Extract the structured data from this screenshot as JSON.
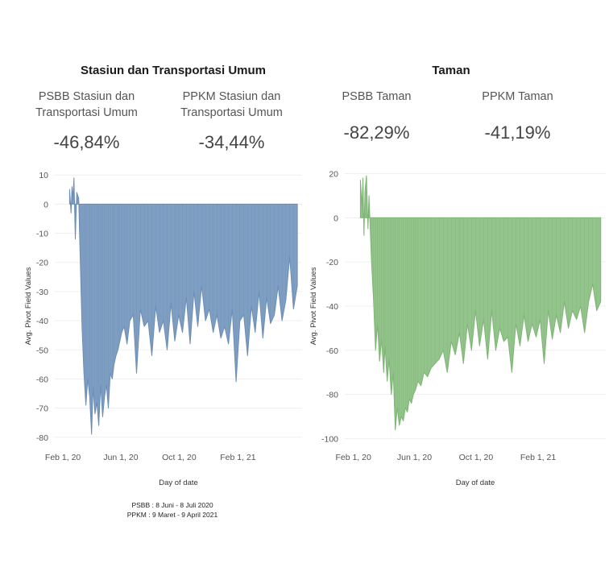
{
  "notes": {
    "psbb": "PSBB : 8 Juni - 8 Juli 2020",
    "ppkm": "PPKM : 9 Maret - 9 April 2021"
  },
  "chart_data": [
    {
      "type": "area",
      "title": "Stasiun dan Transportasi Umum",
      "kpis": [
        {
          "label": "PSBB Stasiun dan\nTransportasi Umum",
          "value": "-46,84%"
        },
        {
          "label": "PPKM Stasiun dan\nTransportasi Umum",
          "value": "-34,44%"
        }
      ],
      "color": "#7f9fc2",
      "stroke": "#6c8db5",
      "xlabel": "Day of date",
      "ylabel": "Avg. Pivot Field Values",
      "ylim": [
        -82,
        12
      ],
      "yticks": [
        10,
        0,
        -10,
        -20,
        -30,
        -40,
        -50,
        -60,
        -70,
        -80
      ],
      "xlim": [
        "2020-01-15",
        "2021-06-15"
      ],
      "xticks": [
        {
          "date": "2020-02-01",
          "label": "Feb 1, 20"
        },
        {
          "date": "2020-06-01",
          "label": "Jun 1, 20"
        },
        {
          "date": "2020-10-01",
          "label": "Oct 1, 20"
        },
        {
          "date": "2021-02-01",
          "label": "Feb 1, 21"
        }
      ],
      "x": [
        "2020-02-15",
        "2020-02-18",
        "2020-02-20",
        "2020-02-22",
        "2020-02-24",
        "2020-02-27",
        "2020-03-01",
        "2020-03-03",
        "2020-03-05",
        "2020-03-08",
        "2020-03-12",
        "2020-03-16",
        "2020-03-20",
        "2020-03-24",
        "2020-03-28",
        "2020-04-01",
        "2020-04-04",
        "2020-04-08",
        "2020-04-12",
        "2020-04-16",
        "2020-04-20",
        "2020-04-24",
        "2020-04-28",
        "2020-05-02",
        "2020-05-06",
        "2020-05-10",
        "2020-05-14",
        "2020-05-18",
        "2020-05-22",
        "2020-05-26",
        "2020-05-30",
        "2020-06-03",
        "2020-06-08",
        "2020-06-14",
        "2020-06-20",
        "2020-06-27",
        "2020-07-04",
        "2020-07-12",
        "2020-07-20",
        "2020-07-28",
        "2020-08-05",
        "2020-08-13",
        "2020-08-21",
        "2020-08-29",
        "2020-09-06",
        "2020-09-14",
        "2020-09-22",
        "2020-09-30",
        "2020-10-08",
        "2020-10-16",
        "2020-10-24",
        "2020-11-01",
        "2020-11-09",
        "2020-11-17",
        "2020-11-25",
        "2020-12-03",
        "2020-12-11",
        "2020-12-19",
        "2020-12-27",
        "2021-01-04",
        "2021-01-12",
        "2021-01-20",
        "2021-01-28",
        "2021-02-05",
        "2021-02-13",
        "2021-02-21",
        "2021-03-01",
        "2021-03-09",
        "2021-03-17",
        "2021-03-25",
        "2021-04-02",
        "2021-04-10",
        "2021-04-18",
        "2021-04-26",
        "2021-05-04",
        "2021-05-12",
        "2021-05-20",
        "2021-05-28",
        "2021-06-05"
      ],
      "values": [
        5,
        -3,
        6,
        2,
        9,
        -12,
        4,
        3,
        2,
        -18,
        -42,
        -58,
        -69,
        -60,
        -66,
        -79,
        -63,
        -72,
        -68,
        -76,
        -62,
        -73,
        -66,
        -62,
        -70,
        -58,
        -60,
        -55,
        -52,
        -50,
        -47,
        -44,
        -42,
        -48,
        -40,
        -38,
        -58,
        -36,
        -42,
        -40,
        -52,
        -35,
        -44,
        -40,
        -50,
        -34,
        -47,
        -38,
        -44,
        -32,
        -48,
        -30,
        -42,
        -28,
        -40,
        -36,
        -44,
        -38,
        -46,
        -42,
        -48,
        -36,
        -61,
        -40,
        -38,
        -52,
        -35,
        -44,
        -30,
        -46,
        -32,
        -41,
        -38,
        -28,
        -40,
        -33,
        -18,
        -36,
        -28
      ]
    },
    {
      "type": "area",
      "title": "Taman",
      "kpis": [
        {
          "label": "PSBB Taman",
          "value": "-82,29%"
        },
        {
          "label": "PPKM Taman",
          "value": "-41,19%"
        }
      ],
      "color": "#93c48b",
      "stroke": "#7db574",
      "xlabel": "Day of date",
      "ylabel": "Avg. Pivot Field Values",
      "ylim": [
        -102,
        22
      ],
      "yticks": [
        20,
        0,
        -20,
        -40,
        -60,
        -80,
        -100
      ],
      "xlim": [
        "2020-01-15",
        "2021-06-15"
      ],
      "xticks": [
        {
          "date": "2020-02-01",
          "label": "Feb 1, 20"
        },
        {
          "date": "2020-06-01",
          "label": "Jun 1, 20"
        },
        {
          "date": "2020-10-01",
          "label": "Oct 1, 20"
        },
        {
          "date": "2021-02-01",
          "label": "Feb 1, 21"
        }
      ],
      "x": [
        "2020-02-15",
        "2020-02-18",
        "2020-02-20",
        "2020-02-22",
        "2020-02-24",
        "2020-02-27",
        "2020-03-01",
        "2020-03-03",
        "2020-03-05",
        "2020-03-08",
        "2020-03-12",
        "2020-03-16",
        "2020-03-20",
        "2020-03-24",
        "2020-03-28",
        "2020-04-01",
        "2020-04-04",
        "2020-04-08",
        "2020-04-12",
        "2020-04-16",
        "2020-04-20",
        "2020-04-24",
        "2020-04-28",
        "2020-05-02",
        "2020-05-06",
        "2020-05-10",
        "2020-05-14",
        "2020-05-18",
        "2020-05-22",
        "2020-05-26",
        "2020-05-30",
        "2020-06-03",
        "2020-06-08",
        "2020-06-14",
        "2020-06-20",
        "2020-06-27",
        "2020-07-04",
        "2020-07-12",
        "2020-07-20",
        "2020-07-28",
        "2020-08-05",
        "2020-08-13",
        "2020-08-21",
        "2020-08-29",
        "2020-09-06",
        "2020-09-14",
        "2020-09-22",
        "2020-09-30",
        "2020-10-08",
        "2020-10-16",
        "2020-10-24",
        "2020-11-01",
        "2020-11-09",
        "2020-11-17",
        "2020-11-25",
        "2020-12-03",
        "2020-12-11",
        "2020-12-19",
        "2020-12-27",
        "2021-01-04",
        "2021-01-12",
        "2021-01-20",
        "2021-01-28",
        "2021-02-05",
        "2021-02-13",
        "2021-02-21",
        "2021-03-01",
        "2021-03-09",
        "2021-03-17",
        "2021-03-25",
        "2021-04-02",
        "2021-04-10",
        "2021-04-18",
        "2021-04-26",
        "2021-05-04",
        "2021-05-12",
        "2021-05-20",
        "2021-05-28",
        "2021-06-05"
      ],
      "values": [
        17,
        5,
        18,
        -8,
        12,
        19,
        -5,
        10,
        -2,
        -20,
        -37,
        -60,
        -48,
        -65,
        -55,
        -70,
        -58,
        -74,
        -64,
        -80,
        -70,
        -96,
        -86,
        -94,
        -90,
        -92,
        -86,
        -88,
        -82,
        -84,
        -80,
        -78,
        -74,
        -76,
        -70,
        -72,
        -68,
        -66,
        -64,
        -60,
        -70,
        -56,
        -62,
        -52,
        -66,
        -48,
        -60,
        -42,
        -58,
        -46,
        -64,
        -42,
        -60,
        -50,
        -56,
        -54,
        -70,
        -48,
        -58,
        -44,
        -56,
        -48,
        -54,
        -46,
        -66,
        -42,
        -55,
        -44,
        -52,
        -38,
        -50,
        -42,
        -46,
        -40,
        -52,
        -38,
        -30,
        -42,
        -38
      ]
    }
  ]
}
